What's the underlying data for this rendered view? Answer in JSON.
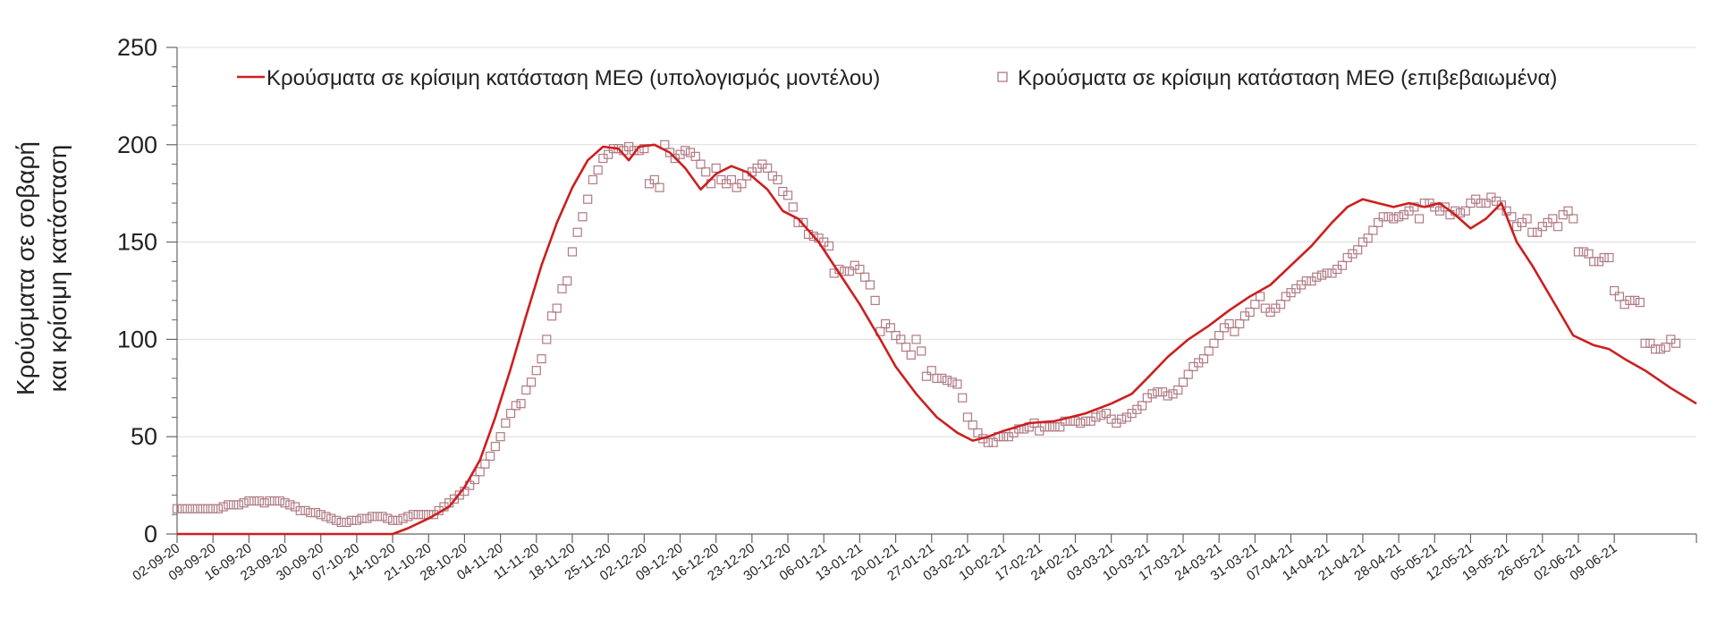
{
  "chart_data": {
    "type": "line",
    "ylabel_lines": [
      "Κρούσματα σε σοβαρή",
      "και κρίσιμη κατάσταση"
    ],
    "ylim": [
      0,
      250
    ],
    "yticks": [
      0,
      50,
      100,
      150,
      200,
      250
    ],
    "grid": true,
    "legend_position": "top",
    "xstart": "2020-09-02",
    "xend": "2021-06-25",
    "xtick_labels": [
      "02-09-20",
      "09-09-20",
      "16-09-20",
      "23-09-20",
      "30-09-20",
      "07-10-20",
      "14-10-20",
      "21-10-20",
      "28-10-20",
      "04-11-20",
      "11-11-20",
      "18-11-20",
      "25-11-20",
      "02-12-20",
      "09-12-20",
      "16-12-20",
      "23-12-20",
      "30-12-20",
      "06-01-21",
      "13-01-21",
      "20-01-21",
      "27-01-21",
      "03-02-21",
      "10-02-21",
      "17-02-21",
      "24-02-21",
      "03-03-21",
      "10-03-21",
      "17-03-21",
      "24-03-21",
      "31-03-21",
      "07-04-21",
      "14-04-21",
      "21-04-21",
      "28-04-21",
      "05-05-21",
      "12-05-21",
      "19-05-21",
      "26-05-21",
      "02-06-21",
      "09-06-21"
    ],
    "colors": {
      "model": "#cc1f1f",
      "confirmed": "#b07a84",
      "grid": "#dcdcdc",
      "axis": "#666666"
    },
    "series": [
      {
        "name": "Κρούσματα σε κρίσιμη κατάσταση ΜΕΘ (υπολογισμός μοντέλου)",
        "kind": "line",
        "points": [
          [
            "2020-09-02",
            0
          ],
          [
            "2020-10-14",
            0
          ],
          [
            "2020-10-17",
            3
          ],
          [
            "2020-10-21",
            8
          ],
          [
            "2020-10-25",
            14
          ],
          [
            "2020-10-28",
            24
          ],
          [
            "2020-10-31",
            38
          ],
          [
            "2020-11-03",
            60
          ],
          [
            "2020-11-06",
            85
          ],
          [
            "2020-11-09",
            112
          ],
          [
            "2020-11-12",
            138
          ],
          [
            "2020-11-15",
            160
          ],
          [
            "2020-11-18",
            178
          ],
          [
            "2020-11-21",
            192
          ],
          [
            "2020-11-24",
            199
          ],
          [
            "2020-11-27",
            198
          ],
          [
            "2020-11-29",
            192
          ],
          [
            "2020-12-01",
            199
          ],
          [
            "2020-12-04",
            200
          ],
          [
            "2020-12-07",
            196
          ],
          [
            "2020-12-10",
            188
          ],
          [
            "2020-12-13",
            177
          ],
          [
            "2020-12-16",
            185
          ],
          [
            "2020-12-19",
            189
          ],
          [
            "2020-12-22",
            186
          ],
          [
            "2020-12-26",
            177
          ],
          [
            "2020-12-29",
            166
          ],
          [
            "2021-01-01",
            162
          ],
          [
            "2021-01-05",
            150
          ],
          [
            "2021-01-09",
            134
          ],
          [
            "2021-01-13",
            118
          ],
          [
            "2021-01-17",
            100
          ],
          [
            "2021-01-20",
            86
          ],
          [
            "2021-01-24",
            72
          ],
          [
            "2021-01-28",
            60
          ],
          [
            "2021-02-01",
            52
          ],
          [
            "2021-02-04",
            48
          ],
          [
            "2021-02-07",
            50
          ],
          [
            "2021-02-10",
            53
          ],
          [
            "2021-02-15",
            57
          ],
          [
            "2021-02-20",
            58
          ],
          [
            "2021-02-26",
            62
          ],
          [
            "2021-03-03",
            67
          ],
          [
            "2021-03-07",
            72
          ],
          [
            "2021-03-10",
            80
          ],
          [
            "2021-03-14",
            91
          ],
          [
            "2021-03-18",
            100
          ],
          [
            "2021-03-22",
            107
          ],
          [
            "2021-03-26",
            115
          ],
          [
            "2021-03-30",
            122
          ],
          [
            "2021-04-03",
            128
          ],
          [
            "2021-04-07",
            138
          ],
          [
            "2021-04-11",
            148
          ],
          [
            "2021-04-15",
            160
          ],
          [
            "2021-04-18",
            168
          ],
          [
            "2021-04-21",
            172
          ],
          [
            "2021-04-24",
            170
          ],
          [
            "2021-04-27",
            168
          ],
          [
            "2021-04-30",
            170
          ],
          [
            "2021-05-03",
            168
          ],
          [
            "2021-05-06",
            170
          ],
          [
            "2021-05-09",
            164
          ],
          [
            "2021-05-12",
            157
          ],
          [
            "2021-05-15",
            162
          ],
          [
            "2021-05-18",
            170
          ],
          [
            "2021-05-21",
            150
          ],
          [
            "2021-05-24",
            138
          ],
          [
            "2021-05-28",
            120
          ],
          [
            "2021-06-01",
            102
          ],
          [
            "2021-06-05",
            97
          ],
          [
            "2021-06-08",
            95
          ],
          [
            "2021-06-11",
            90
          ],
          [
            "2021-06-15",
            84
          ],
          [
            "2021-06-20",
            75
          ],
          [
            "2021-06-25",
            67
          ]
        ]
      },
      {
        "name": "Κρούσματα σε κρίσιμη κατάσταση ΜΕΘ (επιβεβαιωμένα)",
        "kind": "scatter",
        "start": "2020-09-02",
        "step_days": 1,
        "values": [
          13,
          13,
          13,
          13,
          13,
          13,
          13,
          13,
          13,
          14,
          15,
          15,
          15,
          16,
          17,
          17,
          17,
          16,
          17,
          17,
          17,
          16,
          15,
          14,
          12,
          12,
          11,
          11,
          10,
          9,
          8,
          7,
          6,
          6,
          7,
          7,
          8,
          8,
          9,
          9,
          9,
          8,
          7,
          7,
          8,
          9,
          10,
          10,
          10,
          10,
          10,
          12,
          14,
          16,
          18,
          20,
          22,
          25,
          28,
          32,
          36,
          40,
          45,
          50,
          57,
          62,
          66,
          67,
          74,
          78,
          84,
          90,
          100,
          112,
          116,
          126,
          130,
          145,
          155,
          163,
          172,
          182,
          187,
          193,
          195,
          198,
          198,
          197,
          199,
          197,
          197,
          198,
          180,
          182,
          178,
          200,
          196,
          193,
          195,
          197,
          196,
          194,
          190,
          186,
          180,
          188,
          182,
          180,
          182,
          178,
          180,
          184,
          186,
          188,
          190,
          188,
          184,
          182,
          176,
          174,
          168,
          160,
          160,
          154,
          153,
          152,
          150,
          148,
          134,
          136,
          135,
          135,
          138,
          136,
          132,
          128,
          120,
          104,
          108,
          106,
          102,
          100,
          96,
          92,
          100,
          94,
          81,
          84,
          80,
          80,
          79,
          78,
          77,
          70,
          60,
          56,
          52,
          49,
          47,
          47,
          50,
          50,
          50,
          52,
          54,
          54,
          55,
          57,
          53,
          55,
          55,
          55,
          55,
          58,
          58,
          58,
          57,
          58,
          58,
          60,
          61,
          62,
          59,
          57,
          59,
          60,
          62,
          64,
          66,
          70,
          72,
          73,
          73,
          71,
          72,
          74,
          78,
          82,
          86,
          88,
          90,
          94,
          98,
          102,
          106,
          108,
          104,
          108,
          112,
          114,
          118,
          122,
          116,
          114,
          116,
          118,
          122,
          124,
          126,
          128,
          130,
          130,
          132,
          133,
          134,
          134,
          136,
          138,
          142,
          144,
          146,
          150,
          152,
          156,
          160,
          163,
          163,
          162,
          163,
          164,
          166,
          168,
          162,
          170,
          170,
          168,
          166,
          168,
          164,
          166,
          165,
          166,
          170,
          172,
          170,
          170,
          173,
          171,
          169,
          166,
          163,
          158,
          160,
          162,
          155,
          155,
          158,
          160,
          162,
          158,
          164,
          166,
          162,
          145,
          145,
          144,
          140,
          140,
          142,
          142,
          125,
          122,
          118,
          120,
          120,
          119,
          98,
          98,
          95,
          95,
          96,
          100,
          98
        ]
      }
    ]
  }
}
